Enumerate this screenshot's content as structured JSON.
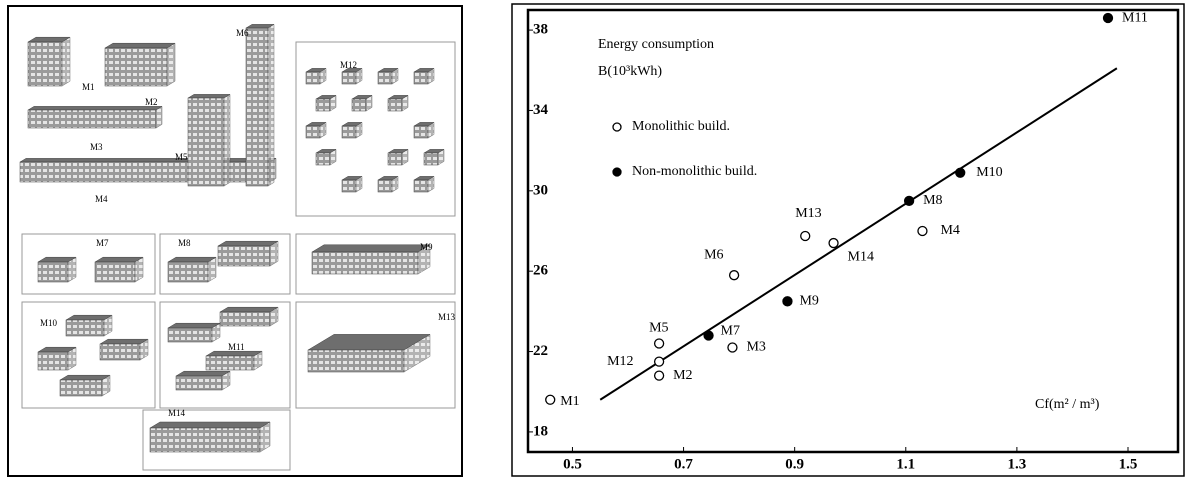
{
  "buildings": {
    "labels": [
      "M1",
      "M2",
      "M3",
      "M4",
      "M5",
      "M6",
      "M7",
      "M8",
      "M9",
      "M10",
      "M11",
      "M12",
      "M13",
      "M14"
    ]
  },
  "chart_data": {
    "type": "scatter",
    "y_title": [
      "Energy consumption",
      "B(10³kWh)"
    ],
    "x_title": "Cf(m² / m³)",
    "xlim": [
      0.42,
      1.59
    ],
    "ylim": [
      17,
      39
    ],
    "xticks": [
      0.5,
      0.7,
      0.9,
      1.1,
      1.3,
      1.5
    ],
    "yticks": [
      18,
      22,
      26,
      30,
      34,
      38
    ],
    "grid": false,
    "series": [
      {
        "name": "Monolithic build.",
        "color": "#000000",
        "filled": false,
        "labels": [
          "M1",
          "M2",
          "M12",
          "M5",
          "M3",
          "M6",
          "M13",
          "M14",
          "M4"
        ],
        "x": [
          0.46,
          0.656,
          0.656,
          0.656,
          0.788,
          0.791,
          0.919,
          0.97,
          1.13
        ],
        "values": [
          19.6,
          20.8,
          21.5,
          22.4,
          22.2,
          25.8,
          27.75,
          27.4,
          28.0
        ]
      },
      {
        "name": "Non-monolithic build.",
        "color": "#000000",
        "filled": true,
        "labels": [
          "M7",
          "M9",
          "M8",
          "M10",
          "M11"
        ],
        "x": [
          0.745,
          0.887,
          1.106,
          1.198,
          1.464
        ],
        "values": [
          22.8,
          24.5,
          29.5,
          30.9,
          38.6
        ]
      }
    ],
    "trend_line": {
      "color": "#000000",
      "x": [
        0.55,
        1.48
      ],
      "values": [
        19.6,
        36.1
      ]
    }
  }
}
